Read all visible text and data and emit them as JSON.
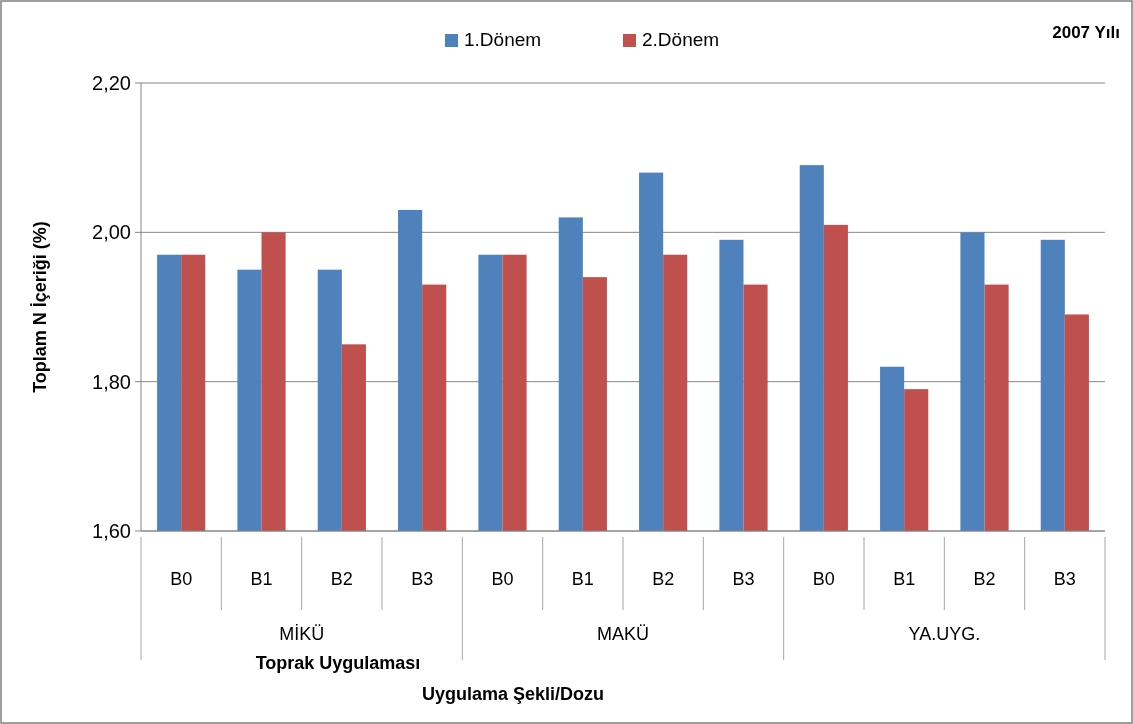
{
  "chart_data": {
    "type": "bar",
    "title": "2007 Yılı",
    "ylabel": "Toplam N İçeriği (%)",
    "categories": [
      "B0",
      "B1",
      "B2",
      "B3",
      "B0",
      "B1",
      "B2",
      "B3",
      "B0",
      "B1",
      "B2",
      "B3"
    ],
    "series": [
      {
        "name": "1.Dönem",
        "color": "#4f81bd",
        "values": [
          1.97,
          1.95,
          1.95,
          2.03,
          1.97,
          2.02,
          2.08,
          1.99,
          2.09,
          1.82,
          2.0,
          1.99
        ]
      },
      {
        "name": "2.Dönem",
        "color": "#c0504d",
        "values": [
          1.97,
          2.0,
          1.85,
          1.93,
          1.97,
          1.94,
          1.97,
          1.93,
          2.01,
          1.79,
          1.93,
          1.89
        ]
      }
    ],
    "ylim": [
      1.6,
      2.2
    ],
    "yticks": [
      {
        "value": 1.6,
        "label": "1,60"
      },
      {
        "value": 1.8,
        "label": "1,80"
      },
      {
        "value": 2.0,
        "label": "2,00"
      },
      {
        "value": 2.2,
        "label": "2,20"
      }
    ],
    "grid": "y",
    "legend": "top",
    "annotations": [
      "MİKÜ",
      "MAKÜ",
      "YA.UYG.",
      "Toprak Uygulaması",
      "Uygulama Şekli/Dozu"
    ]
  }
}
